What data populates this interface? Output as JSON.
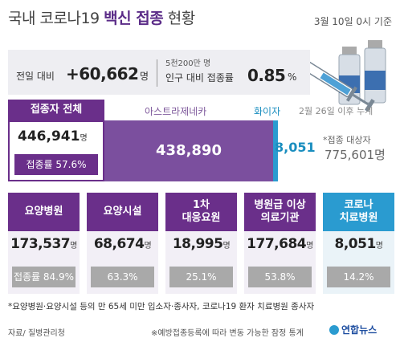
{
  "header": {
    "title_prefix": "국내 코로나19",
    "title_bold": "백신 접종",
    "title_suffix": "현황",
    "date": "3월 10일 0시 기준"
  },
  "summary": {
    "prev_label": "전일 대비",
    "prev_value": "+60,662",
    "prev_unit": "명",
    "population_note": "5천200만 명",
    "rate_label": "인구 대비 접종률",
    "rate_value": "0.85",
    "rate_unit": "%"
  },
  "total": {
    "label": "접종자 전체",
    "count": "446,941",
    "count_unit": "명",
    "rate": "접종률 57.6%"
  },
  "bars": {
    "astrazeneca_label": "아스트라제네카",
    "astrazeneca_value": "438,890",
    "pfizer_label": "화이자",
    "pfizer_value": "8,051",
    "pfizer_note": "2월 26일 이후 누계",
    "target_label": "*접종 대상자",
    "target_value": "775,601명"
  },
  "cards": [
    {
      "title": "요양병원",
      "count": "173,537",
      "unit": "명",
      "rate": "접종률 84.9%"
    },
    {
      "title": "요양시설",
      "count": "68,674",
      "unit": "명",
      "rate": "63.3%"
    },
    {
      "title": "1차\n대응요원",
      "count": "18,995",
      "unit": "명",
      "rate": "25.1%"
    },
    {
      "title": "병원급 이상\n의료기관",
      "count": "177,684",
      "unit": "명",
      "rate": "53.8%"
    },
    {
      "title": "코로나\n치료병원",
      "count": "8,051",
      "unit": "명",
      "rate": "14.2%"
    }
  ],
  "footer": {
    "footnote": "*요양병원·요양시설 등의 만 65세 미만 입소자·종사자, 코로나19 환자 치료병원 종사자",
    "source": "자료/ 질병관리청",
    "disclaimer": "※예방접종등록에 따라 변동 가능한 잠정 통계",
    "logo": "연합뉴스"
  },
  "colors": {
    "purple": "#6a2f8a",
    "astrazeneca": "#7b4f9e",
    "pfizer": "#2a9bd0",
    "rate_gray": "#a9a9a9"
  },
  "icons": {
    "illustration": "vaccine-syringe-vials-icon",
    "logo": "yonhap-logo-icon"
  }
}
